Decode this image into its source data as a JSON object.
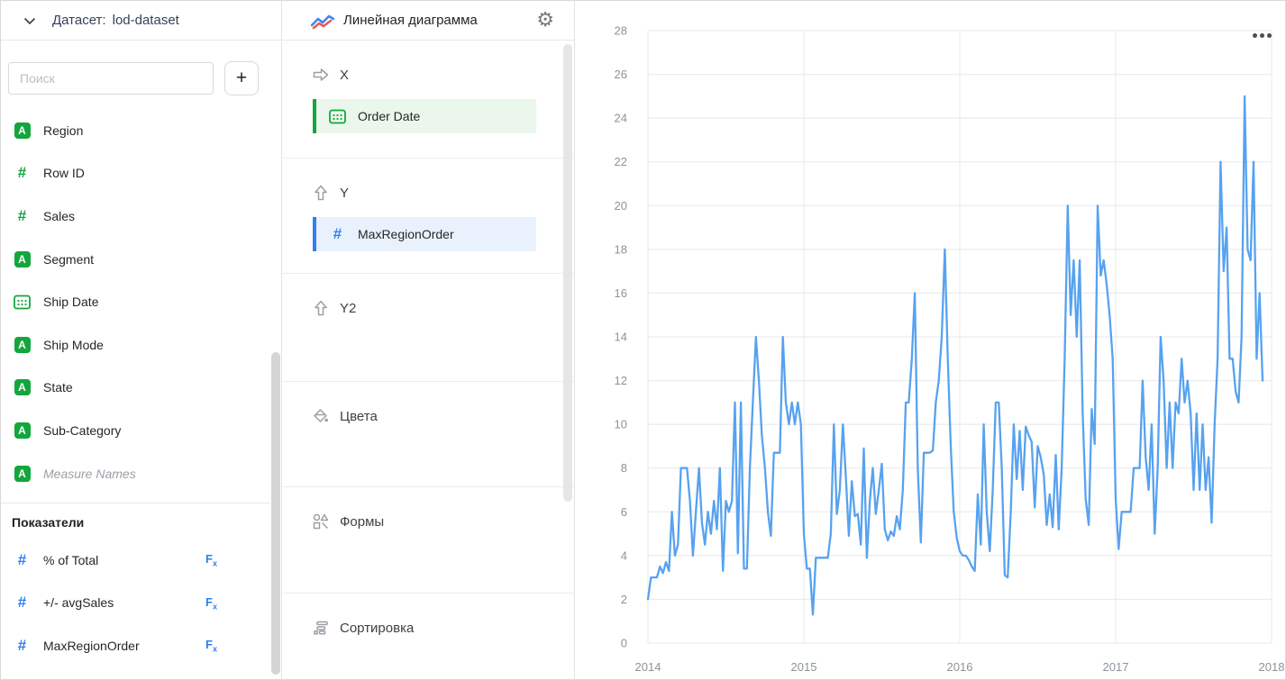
{
  "app": {
    "green": "#12a63c",
    "blue": "#2f80f0",
    "chip_green_bg": "#ebf6ec",
    "chip_blue_bg": "#e9f2fc",
    "line_color": "#57a2f0",
    "grid_color": "#e8e8e8",
    "axis_label_color": "#8c9399"
  },
  "dataset_panel": {
    "header_label": "Датасет:",
    "header_value": "lod-dataset",
    "collapse_icon": "chevron-down-icon",
    "search_placeholder": "Поиск",
    "add_button_label": "+",
    "fields": [
      {
        "name": "Region",
        "type": "string"
      },
      {
        "name": "Row ID",
        "type": "number"
      },
      {
        "name": "Sales",
        "type": "number"
      },
      {
        "name": "Segment",
        "type": "string"
      },
      {
        "name": "Ship Date",
        "type": "date"
      },
      {
        "name": "Ship Mode",
        "type": "string"
      },
      {
        "name": "State",
        "type": "string"
      },
      {
        "name": "Sub-Category",
        "type": "string"
      },
      {
        "name": "Measure Names",
        "type": "string",
        "italic": true
      }
    ],
    "measures_title": "Показатели",
    "measures": [
      {
        "name": "% of Total",
        "type": "number",
        "formula": true
      },
      {
        "name": "+/- avgSales",
        "type": "number",
        "formula": true
      },
      {
        "name": "MaxRegionOrder",
        "type": "number",
        "formula": true
      }
    ],
    "formula_badge": "Fx"
  },
  "config_panel": {
    "title": "Линейная диаграмма",
    "title_icon": "line-chart-icon",
    "settings_icon": "gear-icon",
    "sections": [
      {
        "label": "X",
        "icon": "arrow-right-icon",
        "field": {
          "name": "Order Date",
          "type": "date",
          "color": "green"
        }
      },
      {
        "label": "Y",
        "icon": "arrow-up-icon",
        "field": {
          "name": "MaxRegionOrder",
          "type": "number",
          "color": "blue"
        }
      },
      {
        "label": "Y2",
        "icon": "arrow-up-icon"
      },
      {
        "label": "Цвета",
        "icon": "paint-bucket-icon"
      },
      {
        "label": "Формы",
        "icon": "shapes-icon"
      },
      {
        "label": "Сортировка",
        "icon": "sort-icon"
      }
    ]
  },
  "chart": {
    "menu_icon": "ellipsis-menu-icon"
  },
  "chart_data": {
    "type": "line",
    "title": "",
    "xlabel": "",
    "ylabel": "",
    "x_ticks": [
      "2014",
      "2015",
      "2016",
      "2017",
      "2018"
    ],
    "xlim": [
      2014,
      2018
    ],
    "y_ticks": [
      0,
      2,
      4,
      6,
      8,
      10,
      12,
      14,
      16,
      18,
      20,
      22,
      24,
      26,
      28
    ],
    "ylim": [
      0,
      28
    ],
    "grid": true,
    "legend": false,
    "x_start": 2014,
    "points_per_year": 52,
    "series": [
      {
        "name": "MaxRegionOrder",
        "values": [
          2,
          3,
          3,
          3,
          3.5,
          3.2,
          3.7,
          3.3,
          6,
          4,
          4.5,
          8,
          8,
          8,
          6.5,
          4,
          6,
          8,
          5.5,
          4.5,
          6,
          5,
          6.5,
          5.2,
          8,
          3.3,
          6.5,
          6,
          6.5,
          11,
          4.1,
          11,
          3.4,
          3.4,
          8,
          11,
          14,
          12,
          9.5,
          8,
          6,
          4.9,
          8.7,
          8.7,
          8.7,
          14,
          11,
          10,
          11,
          10,
          11,
          10,
          5,
          3.4,
          3.4,
          1.3,
          3.9,
          3.9,
          3.9,
          3.9,
          3.9,
          5,
          10,
          5.9,
          7,
          10,
          7.6,
          4.9,
          7.4,
          5.8,
          5.9,
          4.5,
          8.9,
          3.9,
          6.5,
          8,
          5.9,
          7,
          8.2,
          5.2,
          4.7,
          5.1,
          4.9,
          5.8,
          5.2,
          7,
          11,
          11,
          13,
          16,
          8,
          4.6,
          8.7,
          8.7,
          8.7,
          8.8,
          11,
          12,
          14,
          18,
          13,
          9,
          6,
          4.8,
          4.2,
          4,
          4,
          3.8,
          3.5,
          3.3,
          6.8,
          4.5,
          10,
          6,
          4.2,
          7,
          11,
          11,
          8,
          3.1,
          3,
          6,
          10,
          7.5,
          9.7,
          7,
          9.9,
          9.5,
          9.2,
          6.2,
          9,
          8.5,
          7.7,
          5.4,
          6.8,
          5.3,
          8.6,
          5.2,
          8,
          13,
          20,
          15,
          17.5,
          14,
          17.5,
          10.5,
          6.6,
          5.4,
          10.7,
          9.1,
          20,
          16.8,
          17.5,
          16.4,
          15,
          13,
          6.6,
          4.3,
          6,
          6,
          6,
          6,
          8,
          8,
          8,
          12,
          8.5,
          7,
          10,
          5,
          8,
          14,
          12,
          8,
          11,
          8,
          11,
          10.5,
          13,
          11,
          12,
          10.5,
          7,
          10.5,
          7,
          10,
          7,
          8.5,
          5.5,
          10,
          13,
          22,
          17,
          19,
          13,
          13,
          11.5,
          11,
          14,
          25,
          18,
          17.5,
          22,
          13,
          16,
          12
        ]
      }
    ]
  }
}
